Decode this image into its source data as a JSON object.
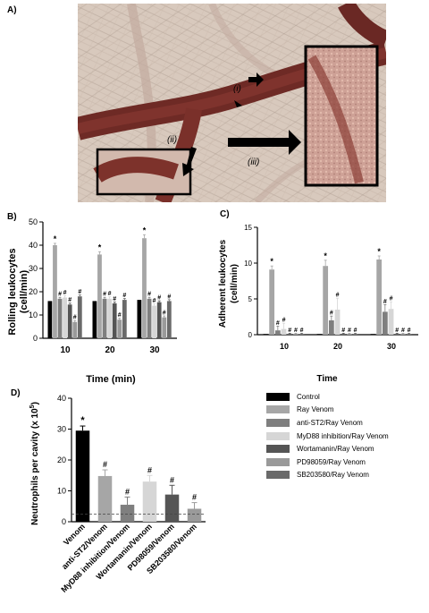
{
  "panels": {
    "a": "A)",
    "b": "B)",
    "c": "C)",
    "d": "D)"
  },
  "micrograph": {
    "labels": [
      "(i)",
      "(ii)",
      "(iii)"
    ]
  },
  "legend": [
    {
      "label": "Control",
      "color": "#000000"
    },
    {
      "label": "Ray Venom",
      "color": "#a6a6a6"
    },
    {
      "label": "anti-ST2/Ray Venom",
      "color": "#7f7f7f"
    },
    {
      "label": "MyD88 inhibition/Ray Venom",
      "color": "#d6d6d6"
    },
    {
      "label": "Wortamanin/Ray Venom",
      "color": "#555555"
    },
    {
      "label": "PD98059/Ray Venom",
      "color": "#9a9a9a"
    },
    {
      "label": "SB203580/Ray Venom",
      "color": "#6a6a6a"
    }
  ],
  "chart_data": [
    {
      "type": "bar",
      "panel": "B)",
      "ylabel": "Rolling leukocytes (cell/min)",
      "ylabel_lines": [
        "Rolling leukocytes",
        "(cell/min)"
      ],
      "xlabel": "Time (min)",
      "categories": [
        "10",
        "20",
        "30"
      ],
      "ylim": [
        0,
        50
      ],
      "yticks": [
        "0",
        "10",
        "20",
        "30",
        "40",
        "50"
      ],
      "series": [
        {
          "name": "Control",
          "values": [
            16,
            16,
            16.5
          ],
          "err": [
            0,
            0,
            0
          ],
          "marker": [
            "",
            "",
            ""
          ]
        },
        {
          "name": "Ray Venom",
          "values": [
            40,
            36,
            43
          ],
          "err": [
            0.8,
            1.2,
            1.5
          ],
          "marker": [
            "*",
            "*",
            "*"
          ]
        },
        {
          "name": "anti-ST2/Ray Venom",
          "values": [
            17,
            17,
            17
          ],
          "err": [
            0.6,
            0.6,
            0.6
          ],
          "marker": [
            "#",
            "#",
            "#"
          ]
        },
        {
          "name": "MyD88 inhibition/Ray Venom",
          "values": [
            17.5,
            17,
            14
          ],
          "err": [
            0.8,
            0.8,
            0.8
          ],
          "marker": [
            "#",
            "#",
            "#"
          ]
        },
        {
          "name": "Wortamanin/Ray Venom",
          "values": [
            14.5,
            15,
            15.5
          ],
          "err": [
            0.6,
            0.6,
            0.6
          ],
          "marker": [
            "#",
            "#",
            "#"
          ]
        },
        {
          "name": "PD98059/Ray Venom",
          "values": [
            7,
            8,
            9
          ],
          "err": [
            0.6,
            0.6,
            0.6
          ],
          "marker": [
            "#",
            "#",
            "#"
          ]
        },
        {
          "name": "SB203580/Ray Venom",
          "values": [
            18,
            16.5,
            16
          ],
          "err": [
            0.6,
            0.6,
            0.6
          ],
          "marker": [
            "#",
            "#",
            "#"
          ]
        }
      ]
    },
    {
      "type": "bar",
      "panel": "C)",
      "ylabel": "Adherent leukocytes (cell/min)",
      "ylabel_lines": [
        "Adherent leukocytes",
        "(cell/min)"
      ],
      "xlabel": "Time",
      "categories": [
        "10",
        "20",
        "30"
      ],
      "ylim": [
        0,
        15
      ],
      "yticks": [
        "0",
        "5",
        "10",
        "15"
      ],
      "series": [
        {
          "name": "Control",
          "values": [
            0.1,
            0.1,
            0.1
          ],
          "err": [
            0,
            0,
            0
          ],
          "marker": [
            "",
            "",
            ""
          ]
        },
        {
          "name": "Ray Venom",
          "values": [
            9.1,
            9.6,
            10.5
          ],
          "err": [
            0.5,
            0.8,
            0.5
          ],
          "marker": [
            "*",
            "*",
            "*"
          ]
        },
        {
          "name": "anti-ST2/Ray Venom",
          "values": [
            0.6,
            2.0,
            3.2
          ],
          "err": [
            0.6,
            0.6,
            1.0
          ],
          "marker": [
            "#",
            "#",
            "#"
          ]
        },
        {
          "name": "MyD88 inhibition/Ray Venom",
          "values": [
            0.8,
            3.5,
            3.6
          ],
          "err": [
            0.8,
            1.6,
            1.0
          ],
          "marker": [
            "#",
            "#",
            "#"
          ]
        },
        {
          "name": "Wortamanin/Ray Venom",
          "values": [
            0.1,
            0.1,
            0.1
          ],
          "err": [
            0.1,
            0.1,
            0.1
          ],
          "marker": [
            "#",
            "#",
            "#"
          ]
        },
        {
          "name": "PD98059/Ray Venom",
          "values": [
            0.1,
            0.1,
            0.1
          ],
          "err": [
            0.1,
            0.1,
            0.1
          ],
          "marker": [
            "#",
            "#",
            "#"
          ]
        },
        {
          "name": "SB203580/Ray Venom",
          "values": [
            0.1,
            0.1,
            0.1
          ],
          "err": [
            0.1,
            0.1,
            0.1
          ],
          "marker": [
            "#",
            "#",
            "#"
          ]
        }
      ]
    },
    {
      "type": "bar",
      "panel": "D)",
      "ylabel": "Neutrophils per cavity (x 10^5)",
      "ylabel_base": "Neutrophils per cavity (x 10",
      "ylabel_exp": "5",
      "ylabel_close": ")",
      "categories": [
        "Venom",
        "anti-ST2/Venom",
        "MyD88 inhibition/Venom",
        "Wortamanin/Venom",
        "PD98059/Venom",
        "SB203580/Venom"
      ],
      "values": [
        29.5,
        14.8,
        5.5,
        13,
        8.8,
        4.2
      ],
      "err": [
        1.5,
        2,
        2.5,
        2,
        3,
        2
      ],
      "marker": [
        "*",
        "#",
        "#",
        "#",
        "#",
        "#"
      ],
      "colors": [
        "#000000",
        "#a6a6a6",
        "#7f7f7f",
        "#d6d6d6",
        "#555555",
        "#9a9a9a"
      ],
      "ylim": [
        0,
        40
      ],
      "yticks": [
        "0",
        "10",
        "20",
        "30",
        "40"
      ],
      "baseline": 2.5
    }
  ]
}
